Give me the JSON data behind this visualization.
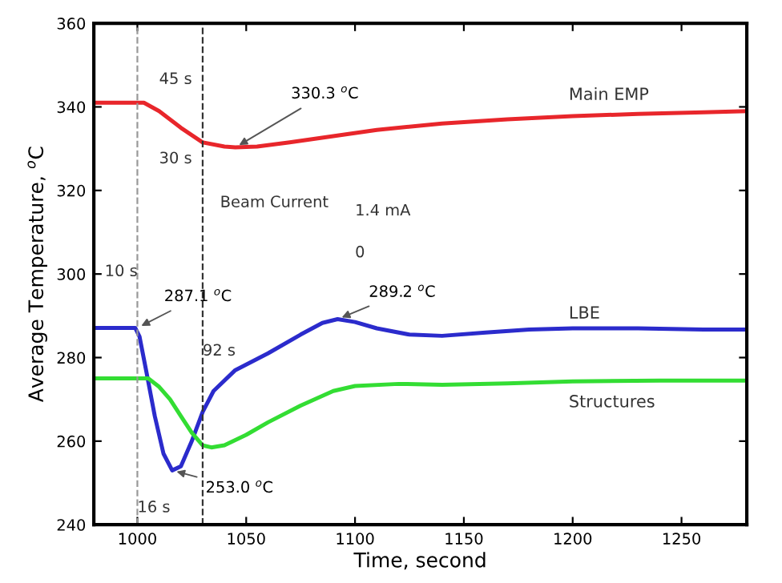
{
  "chart_data": {
    "type": "line",
    "xlabel": "Time, second",
    "ylabel": "Average Temperature, $^{o}$C",
    "xlim": [
      980,
      1280
    ],
    "ylim": [
      240,
      360
    ],
    "xticks": [
      1000,
      1050,
      1100,
      1150,
      1200,
      1250
    ],
    "yticks": [
      240,
      260,
      280,
      300,
      320,
      340,
      360
    ],
    "grid": false,
    "marker": "none",
    "line_style": "solid",
    "series": [
      {
        "name": "Main EMP",
        "color": "#e8262b",
        "x": [
          980,
          1000,
          1003,
          1010,
          1020,
          1030,
          1040,
          1045,
          1055,
          1070,
          1090,
          1110,
          1140,
          1170,
          1200,
          1230,
          1260,
          1280
        ],
        "values": [
          341,
          341,
          341,
          339,
          335,
          331.5,
          330.5,
          330.3,
          330.5,
          331.5,
          333,
          334.5,
          336,
          337,
          337.8,
          338.3,
          338.7,
          339
        ]
      },
      {
        "name": "LBE",
        "color": "#2b2bcc",
        "x": [
          980,
          999,
          1001,
          1004,
          1008,
          1012,
          1016,
          1020,
          1025,
          1030,
          1035,
          1045,
          1060,
          1075,
          1085,
          1092,
          1100,
          1110,
          1125,
          1140,
          1160,
          1180,
          1200,
          1230,
          1260,
          1280
        ],
        "values": [
          287.1,
          287.1,
          285,
          277,
          266,
          257,
          253,
          254,
          260,
          267,
          272,
          277,
          281,
          285.5,
          288.3,
          289.2,
          288.5,
          287,
          285.5,
          285.2,
          286,
          286.7,
          287,
          287,
          286.7,
          286.7
        ]
      },
      {
        "name": "Structures",
        "color": "#33dd33",
        "x": [
          980,
          1000,
          1005,
          1010,
          1015,
          1020,
          1025,
          1030,
          1034,
          1040,
          1050,
          1060,
          1075,
          1090,
          1100,
          1120,
          1140,
          1170,
          1200,
          1240,
          1280
        ],
        "values": [
          275,
          275,
          275,
          273,
          270,
          266,
          262,
          259,
          258.5,
          259,
          261.5,
          264.5,
          268.5,
          272,
          273.2,
          273.7,
          273.5,
          273.8,
          274.3,
          274.5,
          274.5
        ]
      }
    ],
    "ref_lines": [
      {
        "axis": "x",
        "value": 1000,
        "line_style": "dashed",
        "color": "#999999"
      },
      {
        "axis": "x",
        "value": 1030,
        "line_style": "dashed",
        "color": "#333333"
      }
    ],
    "annotations": [
      "1.4 mA",
      "0",
      {
        "text": "330.3 $^{o}$C",
        "x": 1045,
        "y": 330.3
      },
      {
        "text": "287.1 $^{o}$C",
        "x": 1000,
        "y": 287.1
      },
      {
        "text": "289.2 $^{o}$C",
        "x": 1092,
        "y": 289.2
      },
      {
        "text": "253.0 $^{o}$C",
        "x": 1016,
        "y": 253
      },
      "45 s",
      "30 s",
      "10 s",
      "16 s",
      "92 s",
      "Beam Current"
    ]
  }
}
